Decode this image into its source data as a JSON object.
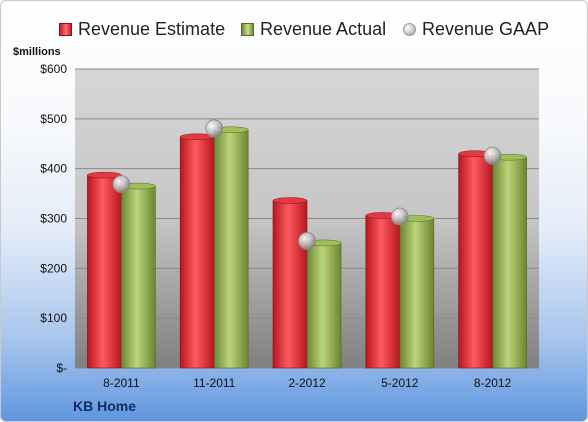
{
  "legend": {
    "estimate": "Revenue Estimate",
    "actual": "Revenue Actual",
    "gaap": "Revenue GAAP"
  },
  "unit_label": "$millions",
  "company": "KB Home",
  "colors": {
    "estimate": "#d9232d",
    "actual": "#8fb04a",
    "gaap": "#bdbdbd"
  },
  "chart_data": {
    "type": "bar",
    "categories": [
      "8-2011",
      "11-2011",
      "2-2012",
      "5-2012",
      "8-2012"
    ],
    "series": [
      {
        "name": "Revenue Estimate",
        "values": [
          387,
          464,
          336,
          306,
          430
        ]
      },
      {
        "name": "Revenue Actual",
        "values": [
          365,
          478,
          251,
          300,
          423
        ]
      },
      {
        "name": "Revenue GAAP",
        "values": [
          369,
          481,
          255,
          304,
          426
        ]
      }
    ],
    "ylabel": "$millions",
    "ylim": [
      0,
      600
    ],
    "yticks": [
      0,
      100,
      200,
      300,
      400,
      500,
      600
    ],
    "ytick_labels": [
      "$-",
      "$100",
      "$200",
      "$300",
      "$400",
      "$500",
      "$600"
    ],
    "grid": true,
    "legend_position": "top"
  }
}
